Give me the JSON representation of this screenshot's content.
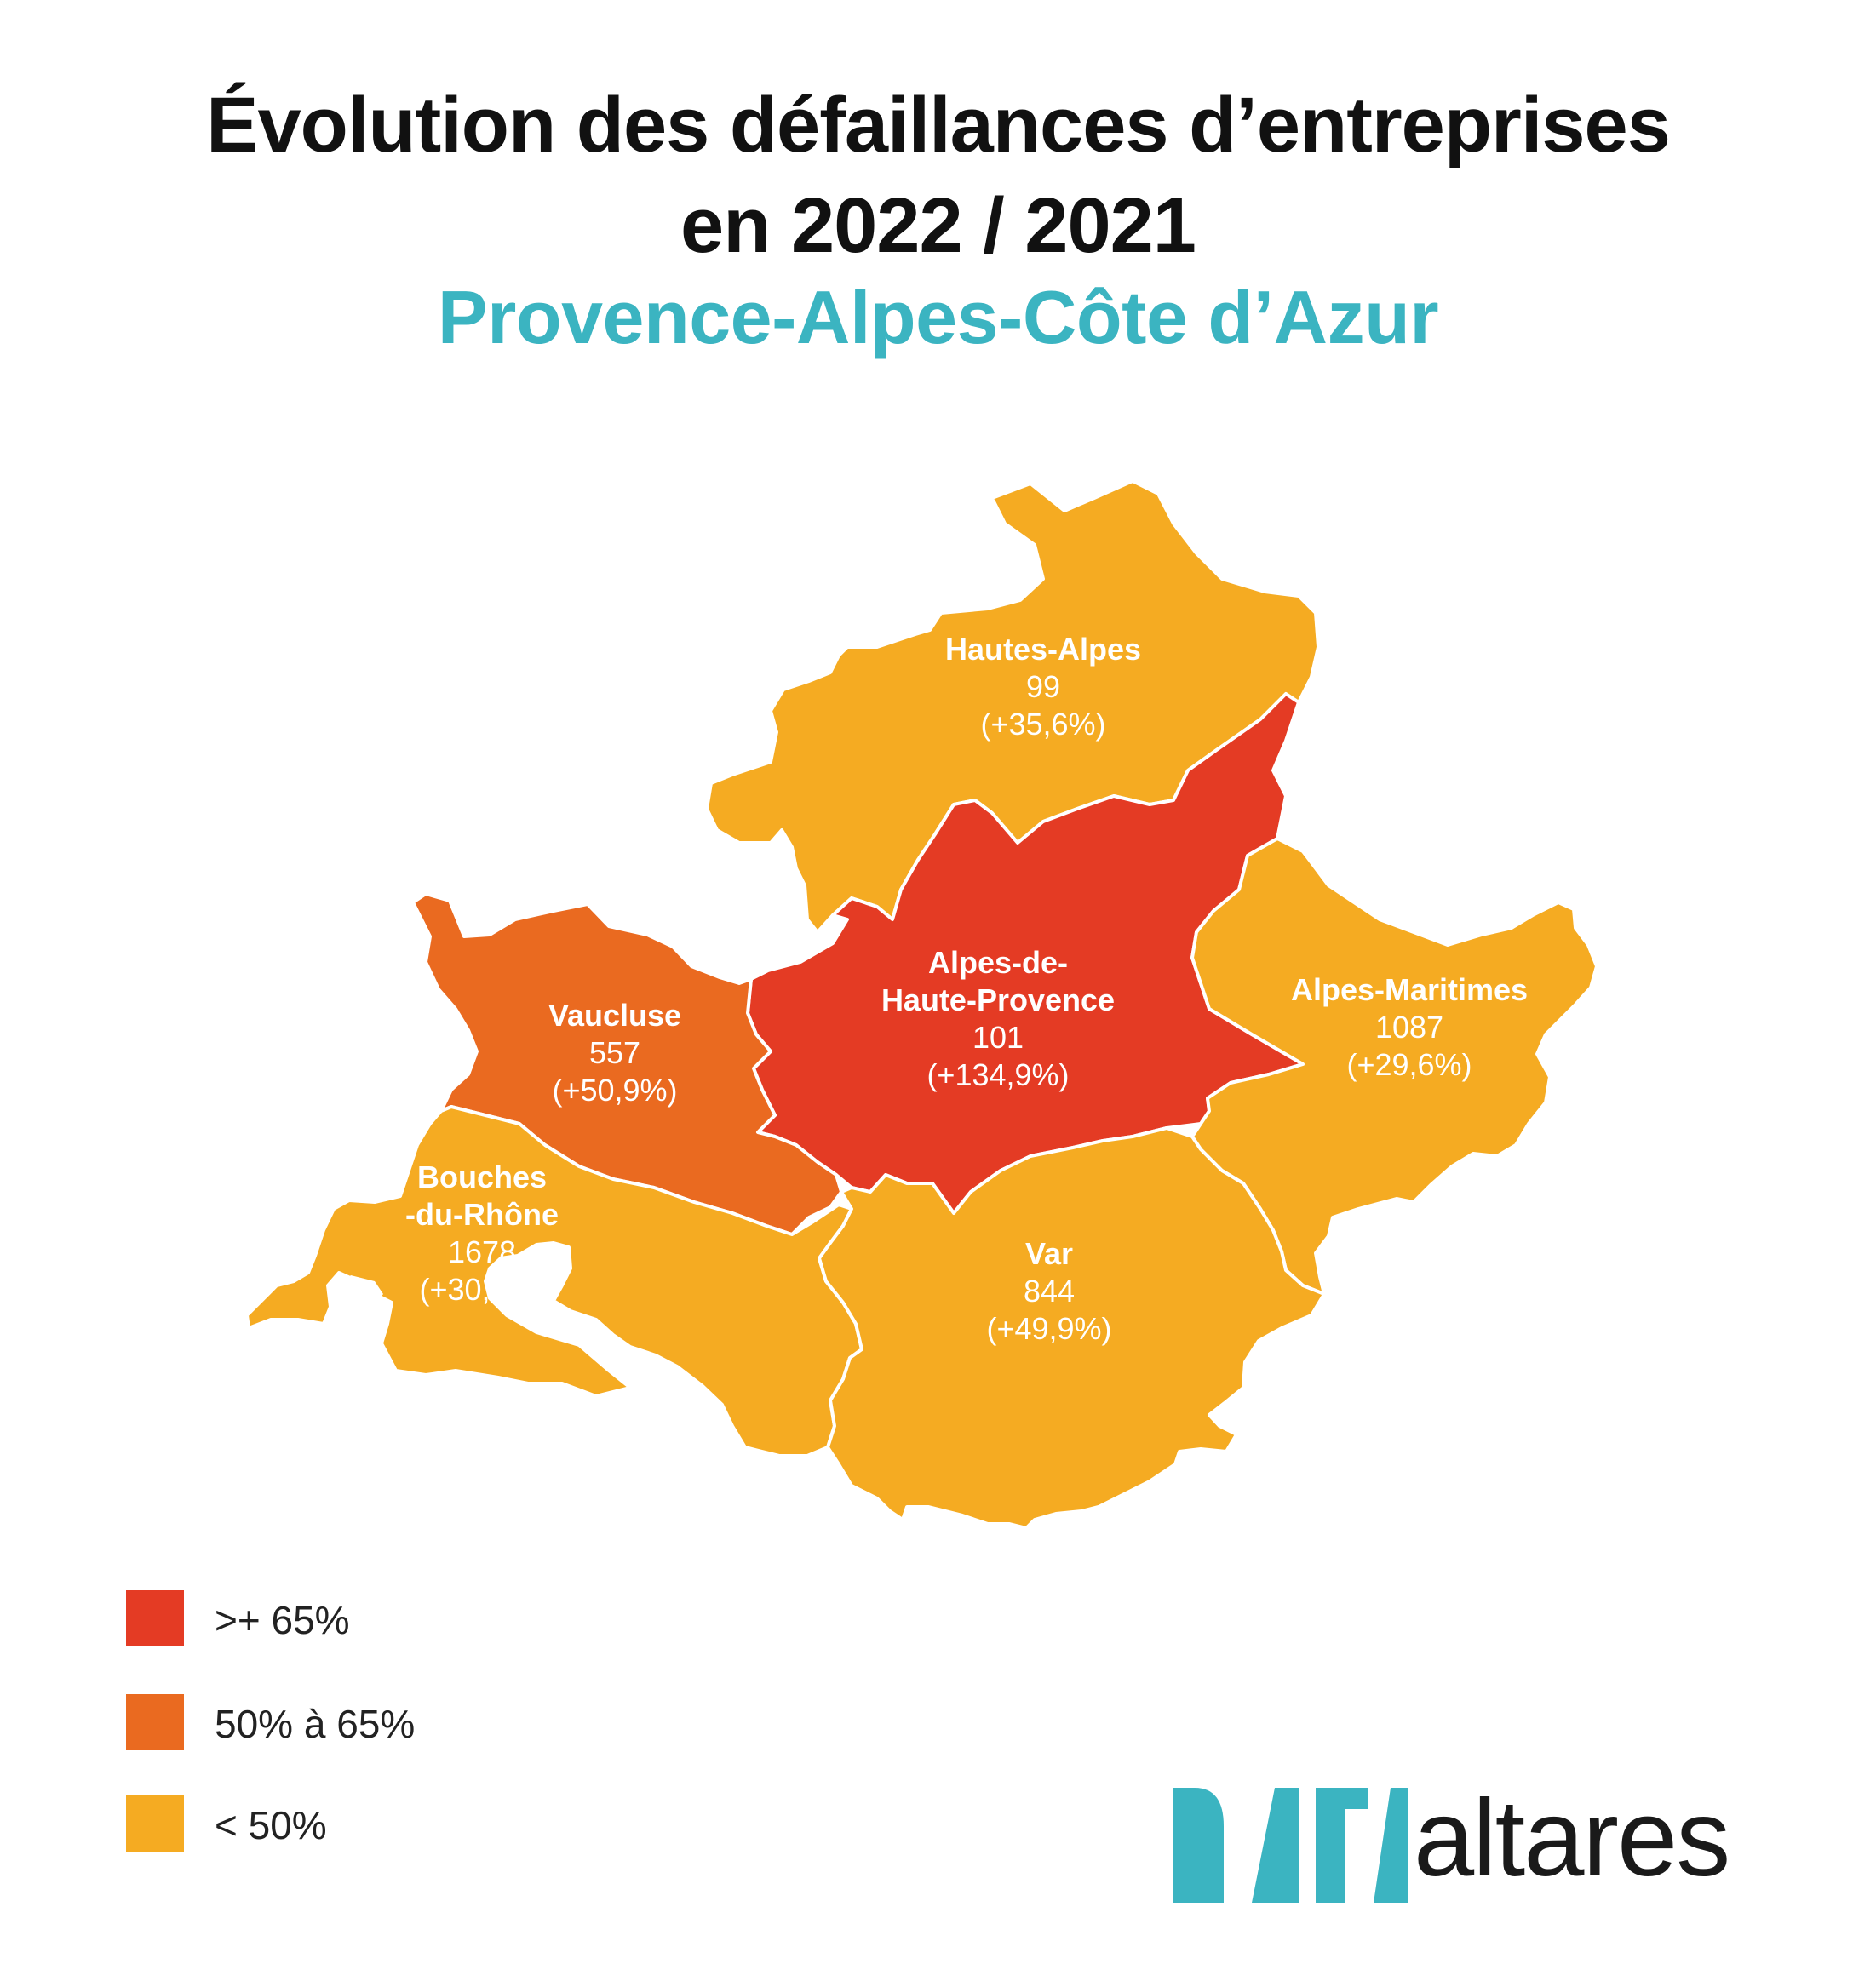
{
  "title_line1": "Évolution des défaillances d’entreprises",
  "title_line2": "en 2022 / 2021",
  "subtitle": "Provence-Alpes-Côte d’Azur",
  "colors": {
    "subtitle": "#3bb4c1",
    "high": "#e43b24",
    "mid": "#ea6a20",
    "low": "#f5ab22",
    "brand": "#3bb4c1"
  },
  "regions": [
    {
      "id": "hautes-alpes",
      "name_lines": [
        "Hautes-Alpes"
      ],
      "value": "99",
      "change": "(+35,6%)",
      "category": "low"
    },
    {
      "id": "alpes-de-haute-provence",
      "name_lines": [
        "Alpes-de-",
        "Haute-Provence"
      ],
      "value": "101",
      "change": "(+134,9%)",
      "category": "high"
    },
    {
      "id": "vaucluse",
      "name_lines": [
        "Vaucluse"
      ],
      "value": "557",
      "change": "(+50,9%)",
      "category": "mid"
    },
    {
      "id": "alpes-maritimes",
      "name_lines": [
        "Alpes-Maritimes"
      ],
      "value": "1087",
      "change": "(+29,6%)",
      "category": "low"
    },
    {
      "id": "bouches-du-rhone",
      "name_lines": [
        "Bouches",
        "-du-Rhône"
      ],
      "value": "1678",
      "change": "(+30,1%)",
      "category": "low"
    },
    {
      "id": "var",
      "name_lines": [
        "Var"
      ],
      "value": "844",
      "change": "(+49,9%)",
      "category": "low"
    }
  ],
  "legend": [
    {
      "label": ">+ 65%",
      "category": "high"
    },
    {
      "label": "50% à 65%",
      "category": "mid"
    },
    {
      "label": "< 50%",
      "category": "low"
    }
  ],
  "brand": {
    "wordmark": "altares",
    "logo_name": "DATA"
  }
}
